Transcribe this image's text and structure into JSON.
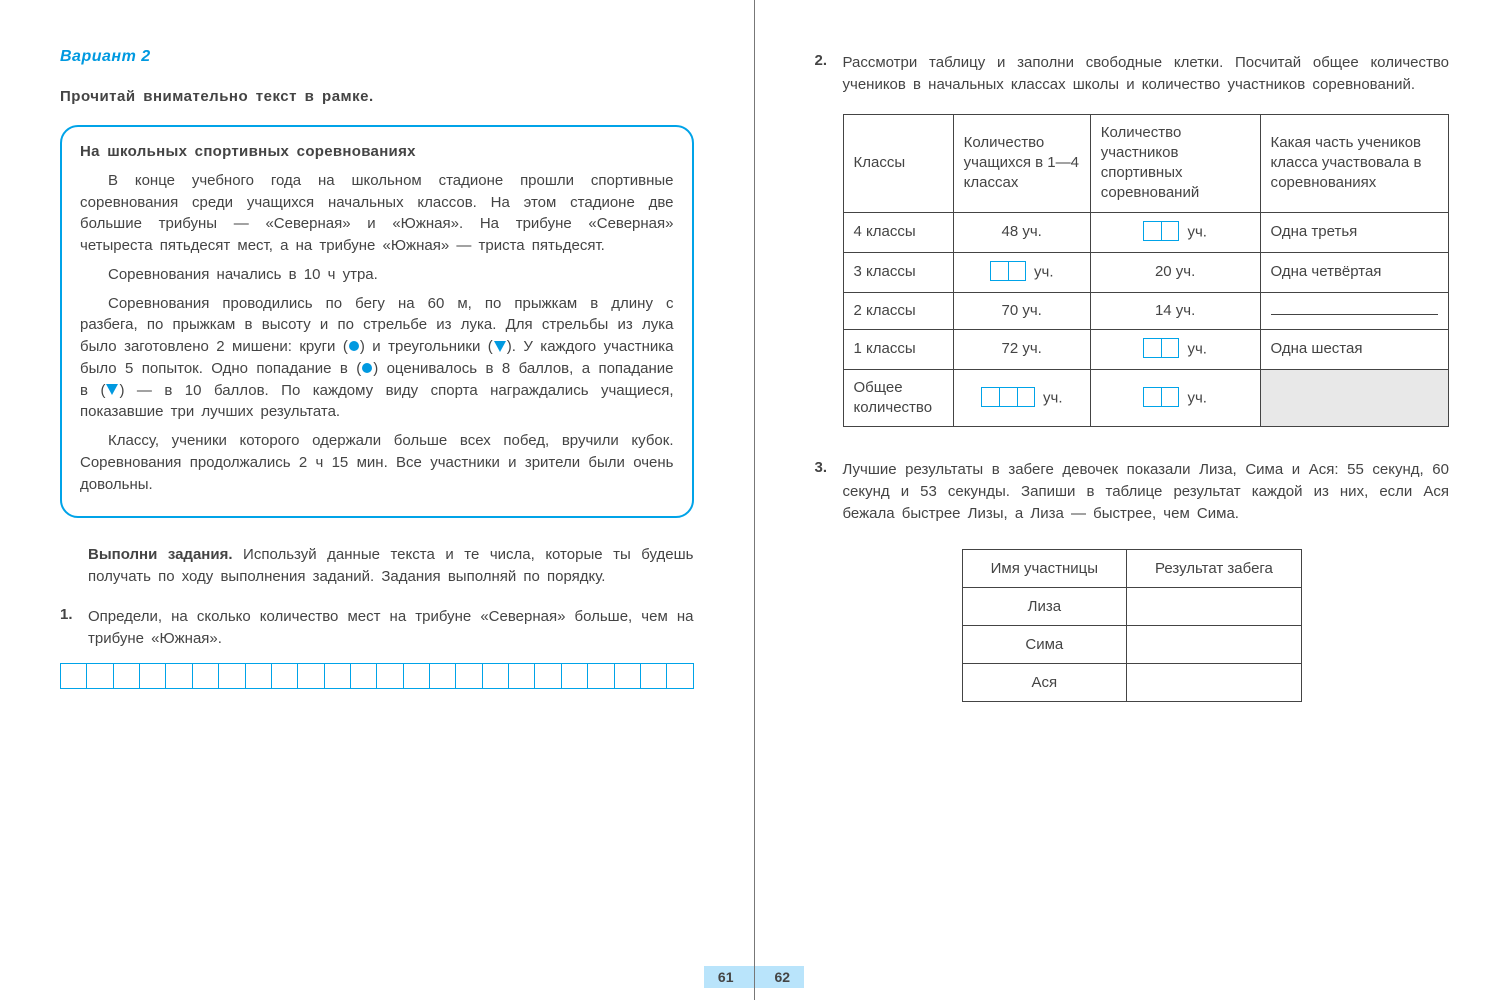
{
  "colors": {
    "accent": "#00a3e8",
    "accent_text": "#0099e0",
    "body_text": "#444444",
    "page_num_bg": "#b9e4fb",
    "table_border": "#444444",
    "grey_cell": "#e8e8e8",
    "white": "#ffffff"
  },
  "left_page": {
    "variant_title": "Вариант 2",
    "read_instruction": "Прочитай внимательно текст в рамке.",
    "frame": {
      "title": "На школьных спортивных соревнованиях",
      "para1": "В конце учебного года на школьном стадионе прошли спортивные соревнования среди учащихся начальных классов. На этом стадионе две большие трибуны — «Северная» и «Южная». На трибуне «Северная» четыреста пятьдесят мест, а на трибуне «Южная» — триста пятьдесят.",
      "para2": "Соревнования начались в 10 ч утра.",
      "para3a": "Соревнования проводились по бегу на 60 м, по прыжкам в длину с разбега, по прыжкам в высоту и по стрельбе из лука. Для стрельбы из лука было заготовлено 2 мишени: круги (",
      "para3b": ") и треугольники (",
      "para3c": "). У каждого участника было 5 попыток. Одно попадание в (",
      "para3d": ") оценивалось в 8 баллов, а попадание в (",
      "para3e": ") — в 10 баллов. По каждому виду спорта награждались учащиеся, показавшие три лучших результата.",
      "para4": "Классу, ученики которого одержали больше всех побед, вручили кубок. Соревнования продолжались 2 ч 15 мин. Все участники и зрители были очень довольны."
    },
    "do_tasks_bold": "Выполни задания.",
    "do_tasks_rest": " Используй данные текста и те числа, которые ты будешь получать по ходу выполнения заданий. Задания выполняй по порядку.",
    "task1_num": "1.",
    "task1_text": "Определи, на сколько количество мест на трибуне «Северная» больше, чем на трибуне «Южная».",
    "answer_cells": 24,
    "page_number": "61"
  },
  "right_page": {
    "task2_num": "2.",
    "task2_text": "Рассмотри таблицу и заполни свободные клетки. Посчитай общее количество учеников в начальных классах школы и количество участников соревнований.",
    "table2": {
      "headers": [
        "Классы",
        "Количество учащихся в 1—4 классах",
        "Количество участников спортивных соревнований",
        "Какая часть учеников класса участвовала в соревнованиях"
      ],
      "rows": [
        {
          "c1": "4 классы",
          "c2_val": "48 уч.",
          "c2_box": 0,
          "c3_val": "уч.",
          "c3_box": 2,
          "c4_val": "Одна третья",
          "c4_line": false
        },
        {
          "c1": "3 классы",
          "c2_val": "уч.",
          "c2_box": 2,
          "c3_val": "20 уч.",
          "c3_box": 0,
          "c4_val": "Одна четвёртая",
          "c4_line": false
        },
        {
          "c1": "2 классы",
          "c2_val": "70 уч.",
          "c2_box": 0,
          "c3_val": "14 уч.",
          "c3_box": 0,
          "c4_val": "",
          "c4_line": true
        },
        {
          "c1": "1 классы",
          "c2_val": "72 уч.",
          "c2_box": 0,
          "c3_val": "уч.",
          "c3_box": 2,
          "c4_val": "Одна шестая",
          "c4_line": false
        },
        {
          "c1": "Общее количество",
          "c2_val": "уч.",
          "c2_box": 3,
          "c3_val": "уч.",
          "c3_box": 2,
          "c4_val": "",
          "c4_line": false,
          "c4_grey": true
        }
      ]
    },
    "task3_num": "3.",
    "task3_text": "Лучшие результаты в забеге девочек показали Лиза, Сима и Ася: 55 секунд, 60 секунд и 53 секунды. Запиши в таблице результат каждой из них, если Ася бежала быстрее Лизы, а Лиза — быстрее, чем Сима.",
    "table3": {
      "headers": [
        "Имя участницы",
        "Результат забега"
      ],
      "rows": [
        "Лиза",
        "Сима",
        "Ася"
      ]
    },
    "page_number": "62"
  }
}
